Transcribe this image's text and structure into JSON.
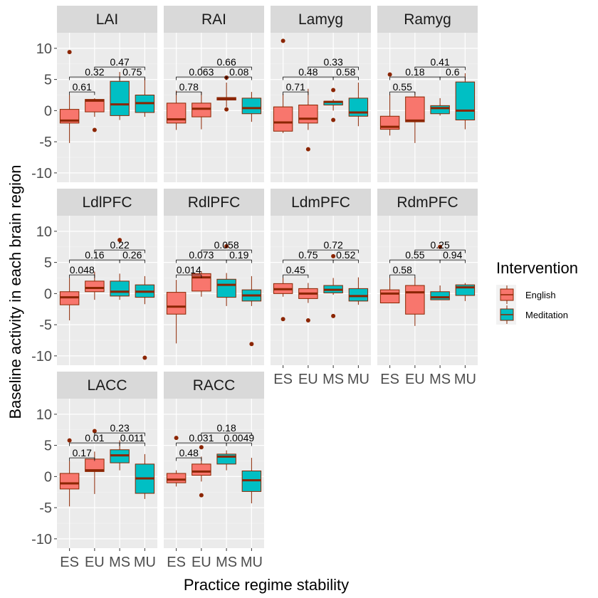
{
  "chart_data": {
    "type": "box",
    "xlabel": "Practice regime stability",
    "ylabel": "Baseline activity in each brain region",
    "ylim": [
      -11.5,
      12.5
    ],
    "yticks": [
      -10,
      -5,
      0,
      5,
      10
    ],
    "categories": [
      "ES",
      "EU",
      "MS",
      "MU"
    ],
    "legend": {
      "title": "Intervention",
      "placement": "right",
      "entries": [
        {
          "label": "English",
          "color": "#F8766D"
        },
        {
          "label": "Meditation",
          "color": "#00BFC4"
        }
      ]
    },
    "box_edge_color": "#8B2500",
    "panels": [
      {
        "title": "LAI",
        "boxes": [
          {
            "cat": "ES",
            "group": "English",
            "min": -5.2,
            "q1": -2.0,
            "median": -1.6,
            "q3": 0.2,
            "max": 2.5,
            "outliers": [
              9.4
            ]
          },
          {
            "cat": "EU",
            "group": "English",
            "min": -1.0,
            "q1": -0.2,
            "median": 1.6,
            "q3": 1.8,
            "max": 2.0,
            "outliers": [
              -3.1
            ]
          },
          {
            "cat": "MS",
            "group": "Meditation",
            "min": -1.5,
            "q1": -0.8,
            "median": 1.0,
            "q3": 4.7,
            "max": 6.2,
            "outliers": []
          },
          {
            "cat": "MU",
            "group": "Meditation",
            "min": -1.0,
            "q1": -0.3,
            "median": 1.2,
            "q3": 2.5,
            "max": 5.2,
            "outliers": []
          }
        ],
        "comparisons": [
          {
            "a": "ES",
            "b": "EU",
            "p": "0.61",
            "y": 3.0
          },
          {
            "a": "ES",
            "b": "MS",
            "p": "0.32",
            "y": 5.4
          },
          {
            "a": "EU",
            "b": "MU",
            "p": "0.47",
            "y": 7.0
          },
          {
            "a": "MS",
            "b": "MU",
            "p": "0.75",
            "y": 5.4
          }
        ]
      },
      {
        "title": "RAI",
        "boxes": [
          {
            "cat": "ES",
            "group": "English",
            "min": -3.1,
            "q1": -2.0,
            "median": -1.4,
            "q3": 1.2,
            "max": 3.2,
            "outliers": []
          },
          {
            "cat": "EU",
            "group": "English",
            "min": -3.0,
            "q1": -1.0,
            "median": 0.3,
            "q3": 1.2,
            "max": 3.0,
            "outliers": []
          },
          {
            "cat": "MS",
            "group": "Meditation",
            "min": 0.6,
            "q1": 1.7,
            "median": 1.9,
            "q3": 2.1,
            "max": 4.5,
            "outliers": [
              0.2,
              5.3
            ]
          },
          {
            "cat": "MU",
            "group": "Meditation",
            "min": -1.8,
            "q1": -0.5,
            "median": 0.4,
            "q3": 2.0,
            "max": 3.0,
            "outliers": []
          }
        ],
        "comparisons": [
          {
            "a": "ES",
            "b": "EU",
            "p": "0.78",
            "y": 3.0
          },
          {
            "a": "ES",
            "b": "MS",
            "p": "0.063",
            "y": 5.4
          },
          {
            "a": "EU",
            "b": "MU",
            "p": "0.66",
            "y": 7.0
          },
          {
            "a": "MS",
            "b": "MU",
            "p": "0.08",
            "y": 5.4
          }
        ]
      },
      {
        "title": "Lamyg",
        "boxes": [
          {
            "cat": "ES",
            "group": "English",
            "min": -3.6,
            "q1": -3.3,
            "median": -1.9,
            "q3": 0.6,
            "max": 2.7,
            "outliers": [
              11.2
            ]
          },
          {
            "cat": "EU",
            "group": "English",
            "min": -3.1,
            "q1": -2.0,
            "median": -1.3,
            "q3": 0.9,
            "max": 3.5,
            "outliers": [
              -6.2
            ]
          },
          {
            "cat": "MS",
            "group": "Meditation",
            "min": 0.0,
            "q1": 0.9,
            "median": 1.4,
            "q3": 1.5,
            "max": 1.8,
            "outliers": [
              3.3,
              -1.5
            ]
          },
          {
            "cat": "MU",
            "group": "Meditation",
            "min": -2.5,
            "q1": -0.9,
            "median": -0.3,
            "q3": 2.0,
            "max": 4.5,
            "outliers": []
          }
        ],
        "comparisons": [
          {
            "a": "ES",
            "b": "EU",
            "p": "0.71",
            "y": 3.0
          },
          {
            "a": "ES",
            "b": "MS",
            "p": "0.48",
            "y": 5.4
          },
          {
            "a": "EU",
            "b": "MU",
            "p": "0.33",
            "y": 7.0
          },
          {
            "a": "MS",
            "b": "MU",
            "p": "0.58",
            "y": 5.4
          }
        ]
      },
      {
        "title": "Ramyg",
        "boxes": [
          {
            "cat": "ES",
            "group": "English",
            "min": -4.0,
            "q1": -3.0,
            "median": -2.6,
            "q3": -0.9,
            "max": 2.6,
            "outliers": [
              5.8
            ]
          },
          {
            "cat": "EU",
            "group": "English",
            "min": -5.2,
            "q1": -1.8,
            "median": -1.6,
            "q3": 2.2,
            "max": 3.0,
            "outliers": []
          },
          {
            "cat": "MS",
            "group": "Meditation",
            "min": -0.8,
            "q1": -0.5,
            "median": 0.4,
            "q3": 0.8,
            "max": 2.0,
            "outliers": []
          },
          {
            "cat": "MU",
            "group": "Meditation",
            "min": -3.0,
            "q1": -1.5,
            "median": 0.0,
            "q3": 4.6,
            "max": 6.0,
            "outliers": []
          }
        ],
        "comparisons": [
          {
            "a": "ES",
            "b": "EU",
            "p": "0.55",
            "y": 3.0
          },
          {
            "a": "ES",
            "b": "MS",
            "p": "0.18",
            "y": 5.4
          },
          {
            "a": "EU",
            "b": "MU",
            "p": "0.41",
            "y": 7.0
          },
          {
            "a": "MS",
            "b": "MU",
            "p": "0.6",
            "y": 5.4
          }
        ]
      },
      {
        "title": "LdlPFC",
        "boxes": [
          {
            "cat": "ES",
            "group": "English",
            "min": -4.3,
            "q1": -1.8,
            "median": -0.6,
            "q3": 0.3,
            "max": 2.5,
            "outliers": []
          },
          {
            "cat": "EU",
            "group": "English",
            "min": -1.0,
            "q1": 0.3,
            "median": 0.9,
            "q3": 2.0,
            "max": 3.5,
            "outliers": []
          },
          {
            "cat": "MS",
            "group": "Meditation",
            "min": -1.0,
            "q1": -0.4,
            "median": 0.3,
            "q3": 2.0,
            "max": 3.2,
            "outliers": [
              8.6
            ]
          },
          {
            "cat": "MU",
            "group": "Meditation",
            "min": -1.7,
            "q1": -0.6,
            "median": 0.3,
            "q3": 1.4,
            "max": 2.8,
            "outliers": [
              -10.3
            ]
          }
        ],
        "comparisons": [
          {
            "a": "ES",
            "b": "EU",
            "p": "0.048",
            "y": 3.0
          },
          {
            "a": "ES",
            "b": "MS",
            "p": "0.16",
            "y": 5.4
          },
          {
            "a": "EU",
            "b": "MU",
            "p": "0.22",
            "y": 7.0
          },
          {
            "a": "MS",
            "b": "MU",
            "p": "0.26",
            "y": 5.4
          }
        ]
      },
      {
        "title": "RdlPFC",
        "boxes": [
          {
            "cat": "ES",
            "group": "English",
            "min": -8.0,
            "q1": -3.3,
            "median": -2.1,
            "q3": 0.2,
            "max": 2.2,
            "outliers": []
          },
          {
            "cat": "EU",
            "group": "English",
            "min": -0.5,
            "q1": 0.4,
            "median": 2.6,
            "q3": 3.2,
            "max": 3.6,
            "outliers": []
          },
          {
            "cat": "MS",
            "group": "Meditation",
            "min": -2.0,
            "q1": -0.6,
            "median": 1.4,
            "q3": 2.3,
            "max": 3.3,
            "outliers": [
              7.6
            ]
          },
          {
            "cat": "MU",
            "group": "Meditation",
            "min": -2.0,
            "q1": -1.2,
            "median": -0.3,
            "q3": 0.6,
            "max": 2.8,
            "outliers": [
              -8.1
            ]
          }
        ],
        "comparisons": [
          {
            "a": "ES",
            "b": "EU",
            "p": "0.014",
            "y": 3.0
          },
          {
            "a": "ES",
            "b": "MS",
            "p": "0.073",
            "y": 5.4
          },
          {
            "a": "EU",
            "b": "MU",
            "p": "0.058",
            "y": 7.0
          },
          {
            "a": "MS",
            "b": "MU",
            "p": "0.19",
            "y": 5.4
          }
        ]
      },
      {
        "title": "LdmPFC",
        "boxes": [
          {
            "cat": "ES",
            "group": "English",
            "min": -0.5,
            "q1": 0.0,
            "median": 0.7,
            "q3": 1.6,
            "max": 2.5,
            "outliers": [
              -4.1
            ]
          },
          {
            "cat": "EU",
            "group": "English",
            "min": -1.5,
            "q1": -0.8,
            "median": 0.0,
            "q3": 0.8,
            "max": 1.7,
            "outliers": [
              -4.3
            ]
          },
          {
            "cat": "MS",
            "group": "Meditation",
            "min": -0.2,
            "q1": 0.1,
            "median": 0.6,
            "q3": 1.3,
            "max": 2.5,
            "outliers": [
              -3.6,
              6.0
            ]
          },
          {
            "cat": "MU",
            "group": "Meditation",
            "min": -1.8,
            "q1": -1.2,
            "median": -0.4,
            "q3": 0.8,
            "max": 2.6,
            "outliers": []
          }
        ],
        "comparisons": [
          {
            "a": "ES",
            "b": "EU",
            "p": "0.45",
            "y": 3.0
          },
          {
            "a": "ES",
            "b": "MS",
            "p": "0.75",
            "y": 5.4
          },
          {
            "a": "EU",
            "b": "MU",
            "p": "0.72",
            "y": 7.0
          },
          {
            "a": "MS",
            "b": "MU",
            "p": "0.52",
            "y": 5.4
          }
        ]
      },
      {
        "title": "RdmPFC",
        "boxes": [
          {
            "cat": "ES",
            "group": "English",
            "min": -1.5,
            "q1": -1.5,
            "median": 0.0,
            "q3": 0.6,
            "max": 2.5,
            "outliers": []
          },
          {
            "cat": "EU",
            "group": "English",
            "min": -5.2,
            "q1": -3.3,
            "median": 0.2,
            "q3": 1.3,
            "max": 2.6,
            "outliers": []
          },
          {
            "cat": "MS",
            "group": "Meditation",
            "min": -1.0,
            "q1": -1.0,
            "median": -0.6,
            "q3": 0.3,
            "max": 1.3,
            "outliers": [
              7.5
            ]
          },
          {
            "cat": "MU",
            "group": "Meditation",
            "min": -1.2,
            "q1": -0.3,
            "median": 1.0,
            "q3": 1.4,
            "max": 1.7,
            "outliers": []
          }
        ],
        "comparisons": [
          {
            "a": "ES",
            "b": "EU",
            "p": "0.58",
            "y": 3.0
          },
          {
            "a": "ES",
            "b": "MS",
            "p": "0.55",
            "y": 5.4
          },
          {
            "a": "EU",
            "b": "MU",
            "p": "0.25",
            "y": 7.0
          },
          {
            "a": "MS",
            "b": "MU",
            "p": "0.94",
            "y": 5.4
          }
        ]
      },
      {
        "title": "LACC",
        "boxes": [
          {
            "cat": "ES",
            "group": "English",
            "min": -4.8,
            "q1": -2.0,
            "median": -1.1,
            "q3": 0.5,
            "max": 2.5,
            "outliers": [
              5.8
            ]
          },
          {
            "cat": "EU",
            "group": "English",
            "min": -2.8,
            "q1": 0.8,
            "median": 1.0,
            "q3": 2.8,
            "max": 4.0,
            "outliers": [
              7.3
            ]
          },
          {
            "cat": "MS",
            "group": "Meditation",
            "min": 1.0,
            "q1": 2.2,
            "median": 3.4,
            "q3": 4.3,
            "max": 5.8,
            "outliers": []
          },
          {
            "cat": "MU",
            "group": "Meditation",
            "min": -3.6,
            "q1": -2.7,
            "median": -0.3,
            "q3": 2.0,
            "max": 3.6,
            "outliers": []
          }
        ],
        "comparisons": [
          {
            "a": "ES",
            "b": "EU",
            "p": "0.17",
            "y": 3.0
          },
          {
            "a": "ES",
            "b": "MS",
            "p": "0.01",
            "y": 5.4
          },
          {
            "a": "EU",
            "b": "MU",
            "p": "0.23",
            "y": 7.0
          },
          {
            "a": "MS",
            "b": "MU",
            "p": "0.011",
            "y": 5.4
          }
        ]
      },
      {
        "title": "RACC",
        "boxes": [
          {
            "cat": "ES",
            "group": "English",
            "min": -1.6,
            "q1": -1.0,
            "median": -0.5,
            "q3": 0.5,
            "max": 1.0,
            "outliers": [
              6.2
            ]
          },
          {
            "cat": "EU",
            "group": "English",
            "min": -0.8,
            "q1": 0.2,
            "median": 0.8,
            "q3": 2.0,
            "max": 3.2,
            "outliers": [
              -3.0,
              4.7
            ]
          },
          {
            "cat": "MS",
            "group": "Meditation",
            "min": 1.0,
            "q1": 2.0,
            "median": 3.2,
            "q3": 3.6,
            "max": 4.2,
            "outliers": []
          },
          {
            "cat": "MU",
            "group": "Meditation",
            "min": -4.3,
            "q1": -2.4,
            "median": -0.6,
            "q3": 0.9,
            "max": 3.0,
            "outliers": []
          }
        ],
        "comparisons": [
          {
            "a": "ES",
            "b": "EU",
            "p": "0.48",
            "y": 3.0
          },
          {
            "a": "ES",
            "b": "MS",
            "p": "0.031",
            "y": 5.4
          },
          {
            "a": "EU",
            "b": "MU",
            "p": "0.18",
            "y": 7.0
          },
          {
            "a": "MS",
            "b": "MU",
            "p": "0.0049",
            "y": 5.4
          }
        ]
      }
    ]
  }
}
